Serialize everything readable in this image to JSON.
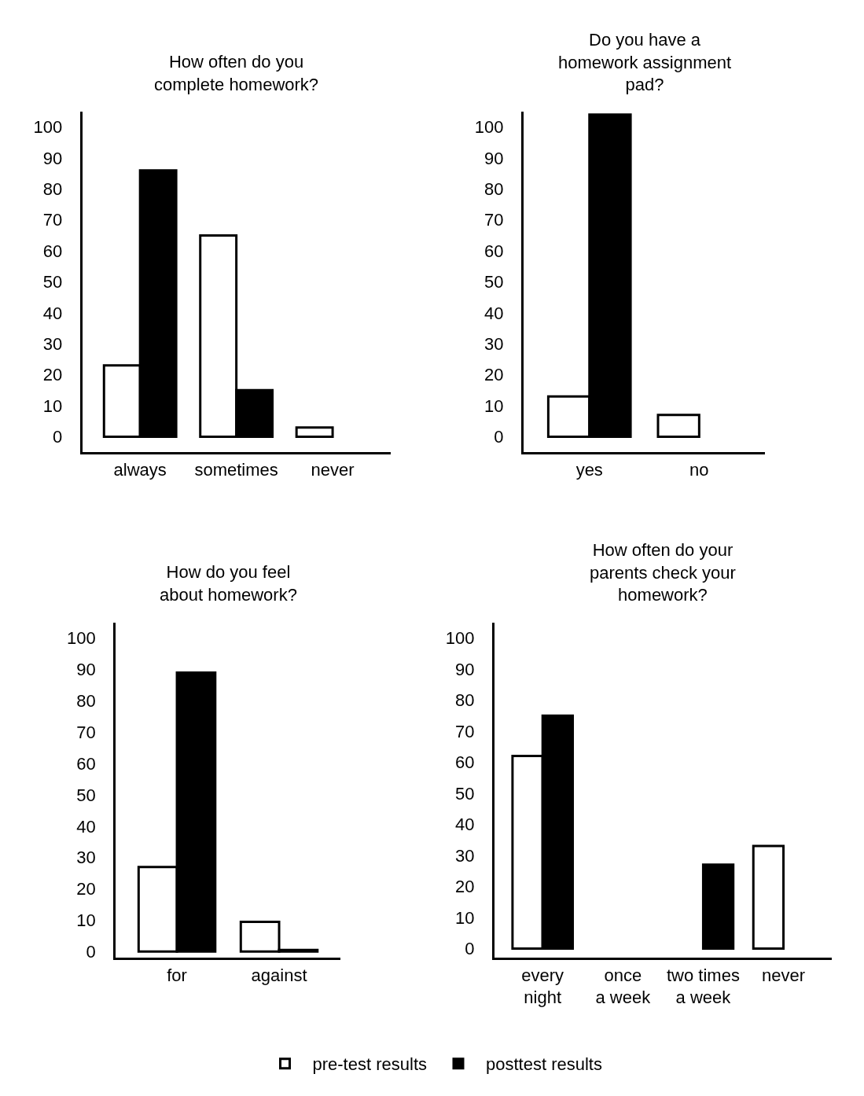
{
  "chart_data": [
    {
      "type": "bar",
      "title": "How often do you\ncomplete homework?",
      "categories": [
        "always",
        "sometimes",
        "never"
      ],
      "series": [
        {
          "name": "pre-test results",
          "color": "#ffffff",
          "values": [
            23,
            65,
            3
          ]
        },
        {
          "name": "posttest results",
          "color": "#000000",
          "values": [
            86,
            15,
            null
          ]
        }
      ],
      "ylim": [
        -5,
        105
      ],
      "yticks": [
        0,
        10,
        20,
        30,
        40,
        50,
        60,
        70,
        80,
        90,
        100
      ],
      "legend": "bottom"
    },
    {
      "type": "bar",
      "title": "Do you have a\nhomework assignment\npad?",
      "categories": [
        "yes",
        "no"
      ],
      "series": [
        {
          "name": "pre-test results",
          "color": "#ffffff",
          "values": [
            13,
            7
          ]
        },
        {
          "name": "posttest results",
          "color": "#000000",
          "values": [
            104,
            null
          ]
        }
      ],
      "ylim": [
        -5,
        105
      ],
      "yticks": [
        0,
        10,
        20,
        30,
        40,
        50,
        60,
        70,
        80,
        90,
        100
      ],
      "legend": "bottom"
    },
    {
      "type": "bar",
      "title": "How do you feel\nabout homework?",
      "categories": [
        "for",
        "against"
      ],
      "series": [
        {
          "name": "pre-test results",
          "color": "#ffffff",
          "values": [
            27,
            9.5
          ]
        },
        {
          "name": "posttest results",
          "color": "#000000",
          "values": [
            89,
            0.5
          ]
        }
      ],
      "ylim": [
        -2,
        105
      ],
      "yticks": [
        0,
        10,
        20,
        30,
        40,
        50,
        60,
        70,
        80,
        90,
        100
      ],
      "legend": "bottom"
    },
    {
      "type": "bar",
      "title": "How often do your\nparents check your\nhomework?",
      "categories": [
        "every\nnight",
        "once\na week",
        "two times\na week",
        "never"
      ],
      "series": [
        {
          "name": "pre-test results",
          "color": "#ffffff",
          "values": [
            62,
            null,
            null,
            33
          ]
        },
        {
          "name": "posttest results",
          "color": "#000000",
          "values": [
            75,
            null,
            27,
            null
          ]
        }
      ],
      "ylim": [
        -3,
        105
      ],
      "yticks": [
        0,
        10,
        20,
        30,
        40,
        50,
        60,
        70,
        80,
        90,
        100
      ],
      "legend": "bottom"
    }
  ]
}
